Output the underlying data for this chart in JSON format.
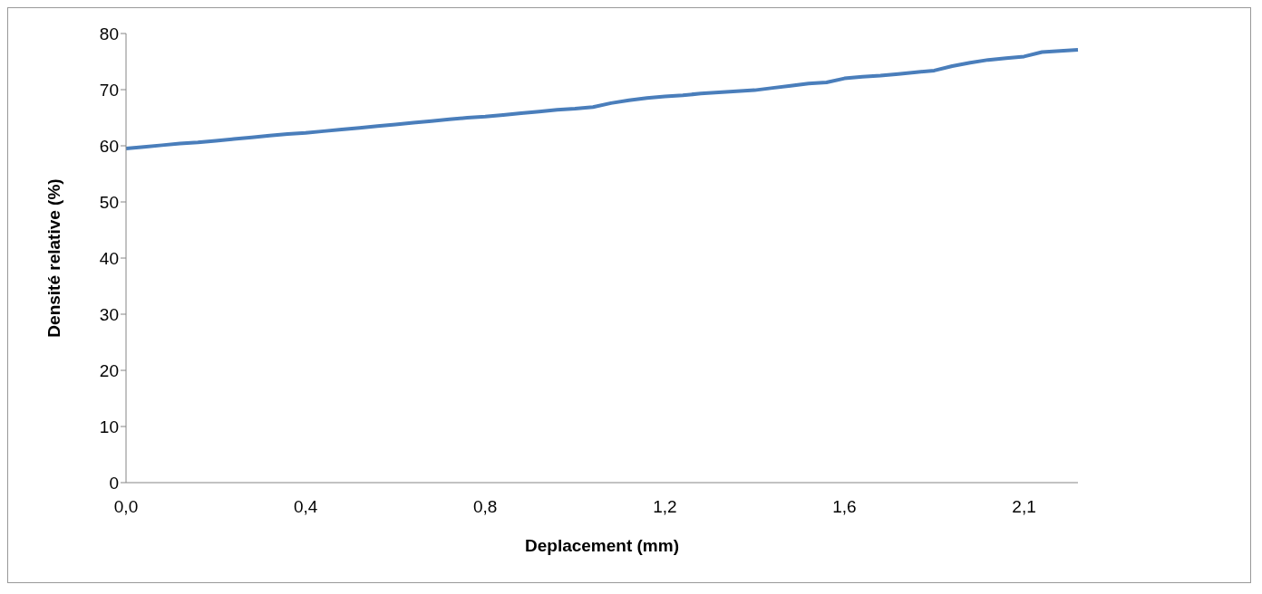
{
  "chart_data": {
    "type": "line",
    "xlabel": "Deplacement (mm)",
    "ylabel": "Densité relative (%)",
    "categories": [
      "0,0",
      null,
      null,
      null,
      null,
      null,
      null,
      null,
      null,
      null,
      "0,4",
      null,
      null,
      null,
      null,
      null,
      null,
      null,
      null,
      null,
      "0,8",
      null,
      null,
      null,
      null,
      null,
      null,
      null,
      null,
      null,
      "1,2",
      null,
      null,
      null,
      null,
      null,
      null,
      null,
      null,
      null,
      "1,6",
      null,
      null,
      null,
      null,
      null,
      null,
      null,
      null,
      null,
      "2,1",
      null,
      null,
      null
    ],
    "series": [
      {
        "color": "#4a7ebb",
        "values": [
          59.5,
          59.8,
          60.1,
          60.4,
          60.6,
          60.9,
          61.2,
          61.5,
          61.8,
          62.1,
          62.3,
          62.6,
          62.9,
          63.2,
          63.5,
          63.8,
          64.1,
          64.4,
          64.7,
          65.0,
          65.2,
          65.5,
          65.8,
          66.1,
          66.4,
          66.6,
          66.9,
          67.6,
          68.1,
          68.5,
          68.8,
          69.0,
          69.3,
          69.5,
          69.7,
          69.9,
          70.3,
          70.7,
          71.1,
          71.3,
          72.0,
          72.3,
          72.5,
          72.8,
          73.1,
          73.4,
          74.2,
          74.8,
          75.3,
          75.6,
          75.9,
          76.7,
          76.9,
          77.1
        ]
      }
    ],
    "ylim": [
      0,
      80
    ],
    "yticks": [
      0,
      10,
      20,
      30,
      40,
      50,
      60,
      70,
      80
    ],
    "grid": false,
    "legend": false,
    "marker": "none",
    "line_style": "solid"
  }
}
